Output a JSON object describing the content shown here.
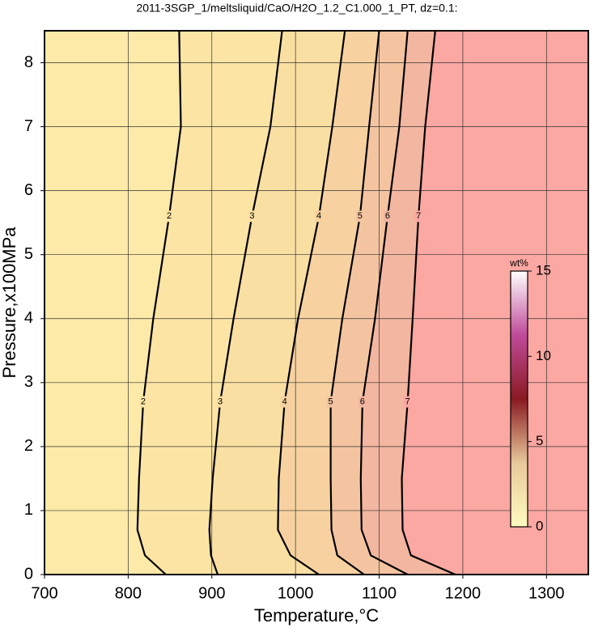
{
  "chart_data": {
    "type": "contour",
    "title": "2011-3SGP_1/meltsliquid/CaO/H2O_1.2_C1.000_1_PT, dz=0.1:",
    "x_label": "Temperature,°C",
    "y_label": "Pressure,x100MPa",
    "xlim": [
      700,
      1350
    ],
    "xticks": [
      700,
      800,
      900,
      1000,
      1100,
      1200,
      1300
    ],
    "ylim": [
      0,
      8.5
    ],
    "yticks": [
      0,
      1,
      2,
      3,
      4,
      5,
      6,
      7,
      8
    ],
    "grid": true,
    "background_color": "#fdeaa8",
    "contours": [
      {
        "level": 2,
        "color": "#fce5a4",
        "x": [
          845,
          820,
          811,
          813,
          818,
          830,
          849,
          863,
          861
        ],
        "y": [
          0,
          0.3,
          0.7,
          1.5,
          2.7,
          4,
          5.6,
          7,
          8.5
        ]
      },
      {
        "level": 3,
        "color": "#fadfa2",
        "x": [
          907,
          899,
          897,
          901,
          910,
          926,
          948,
          970,
          984
        ],
        "y": [
          0,
          0.3,
          0.7,
          1.5,
          2.7,
          4,
          5.6,
          7,
          8.5
        ]
      },
      {
        "level": 4,
        "color": "#f7d2a0",
        "x": [
          1028,
          994,
          979,
          980,
          987,
          1003,
          1028,
          1044,
          1059
        ],
        "y": [
          0,
          0.3,
          0.7,
          1.5,
          2.7,
          4,
          5.6,
          7,
          8.5
        ]
      },
      {
        "level": 5,
        "color": "#f4c4a0",
        "x": [
          1082,
          1050,
          1043,
          1042,
          1042,
          1056,
          1077,
          1088,
          1100
        ],
        "y": [
          0,
          0.3,
          0.7,
          1.5,
          2.7,
          4,
          5.6,
          7,
          8.5
        ]
      },
      {
        "level": 6,
        "color": "#f3b6a0",
        "x": [
          1134,
          1090,
          1079,
          1078,
          1080,
          1095,
          1110,
          1124,
          1134
        ],
        "y": [
          0,
          0.3,
          0.7,
          1.5,
          2.7,
          4,
          5.6,
          7,
          8.5
        ]
      },
      {
        "level": 7,
        "color": "#fba7a2",
        "x": [
          1191,
          1138,
          1128,
          1127,
          1134,
          1140,
          1147,
          1155,
          1167
        ],
        "y": [
          0,
          0.3,
          0.7,
          1.5,
          2.7,
          4,
          5.6,
          7,
          8.5
        ]
      }
    ],
    "colorbar": {
      "label": "wt%",
      "lim": [
        0,
        15
      ],
      "ticks": [
        0,
        5,
        10,
        15
      ],
      "colors": [
        "#fffbc0",
        "#e8c89a",
        "#8a1a22",
        "#c04a9a",
        "#ffffff"
      ]
    }
  }
}
